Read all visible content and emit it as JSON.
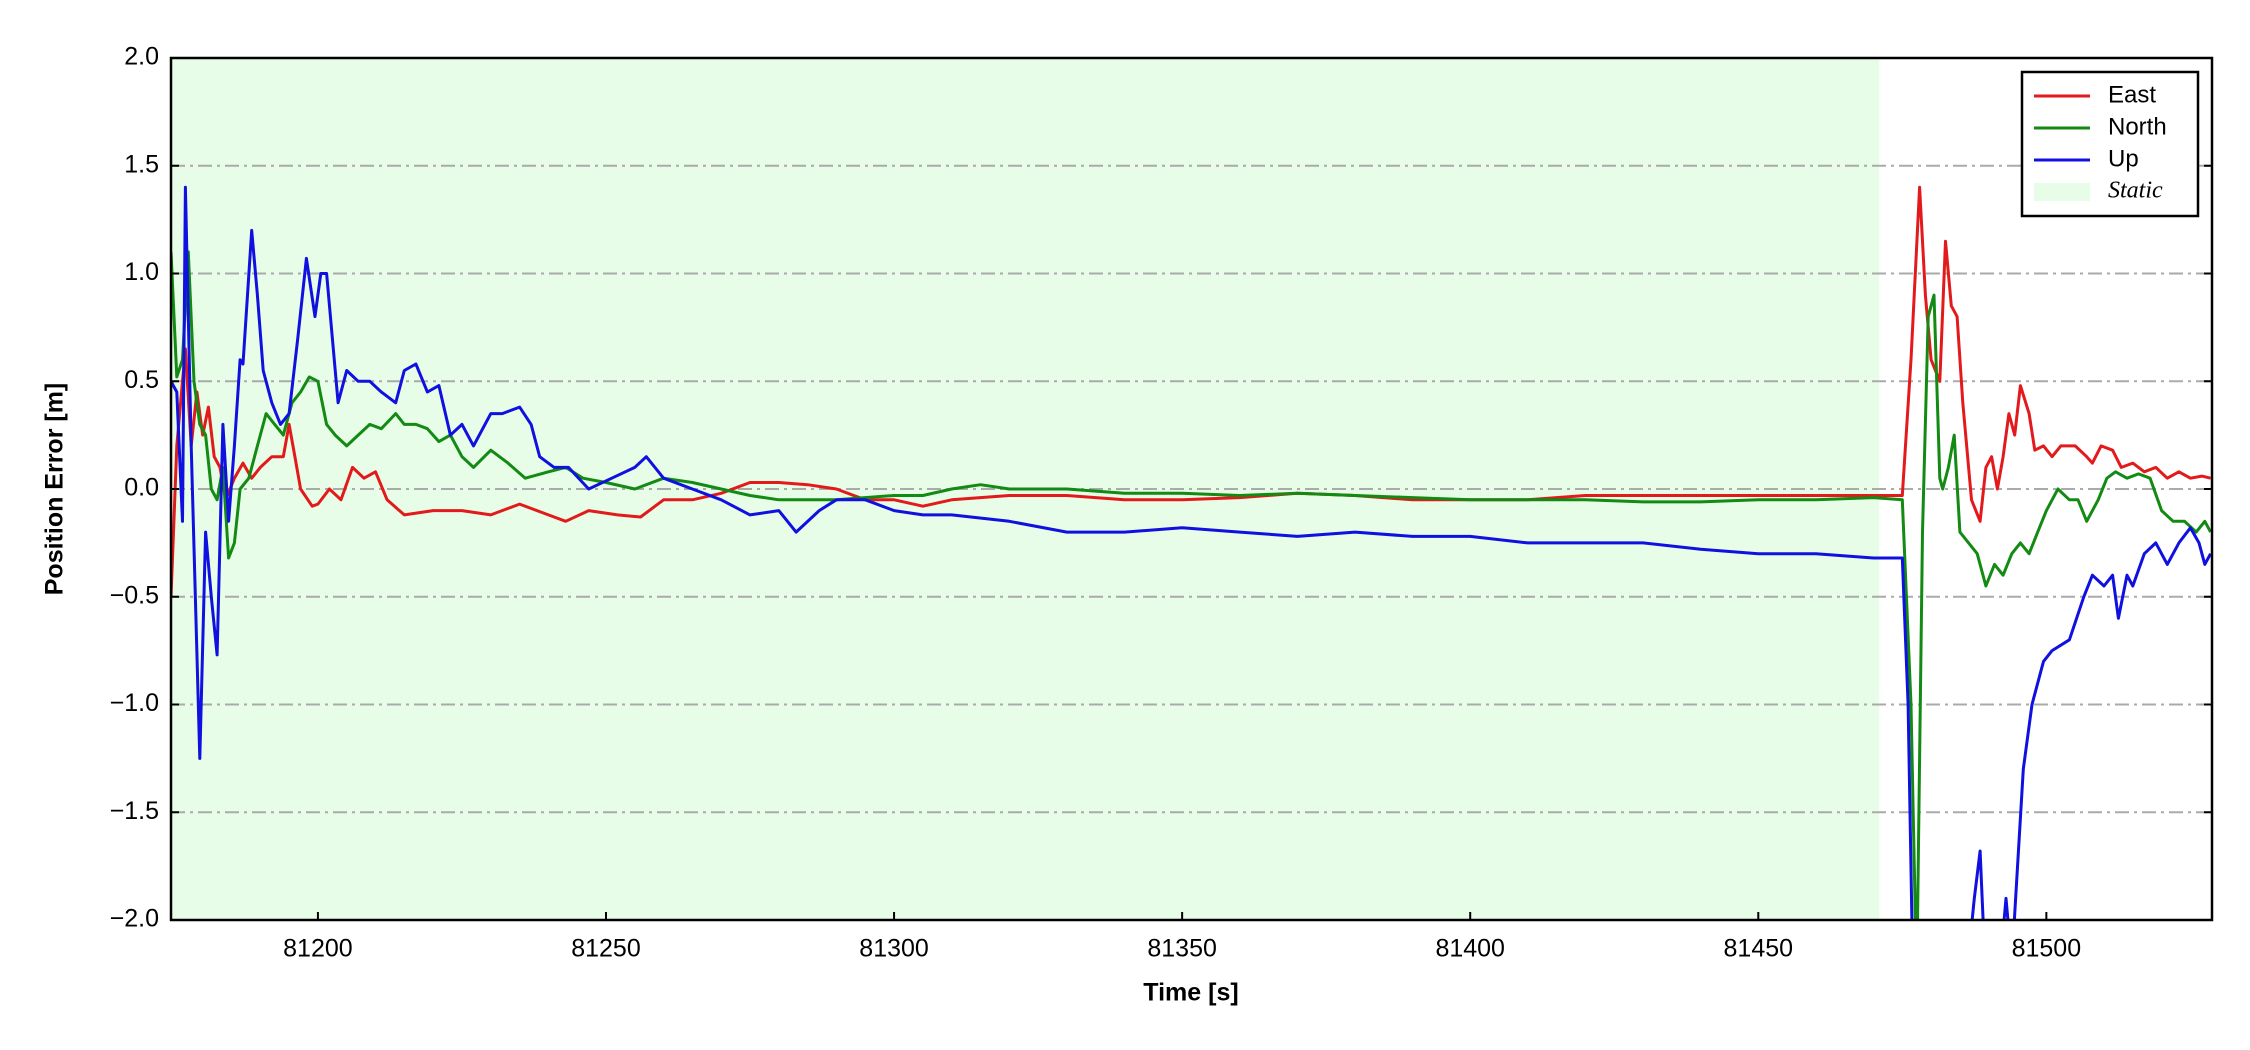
{
  "chart_data": {
    "type": "line",
    "xlabel": "Time [s]",
    "ylabel": "Position Error [m]",
    "xlim": [
      81174.5,
      81528.75
    ],
    "ylim": [
      -2.0,
      2.0
    ],
    "xticks": [
      81200,
      81250,
      81300,
      81350,
      81400,
      81450,
      81500
    ],
    "yticks": [
      {
        "value": -2.0,
        "label": "−2.0"
      },
      {
        "value": -1.5,
        "label": "−1.5"
      },
      {
        "value": -1.0,
        "label": "−1.0"
      },
      {
        "value": -0.5,
        "label": "−0.5"
      },
      {
        "value": 0.0,
        "label": "0.0"
      },
      {
        "value": 0.5,
        "label": "0.5"
      },
      {
        "value": 1.0,
        "label": "1.0"
      },
      {
        "value": 1.5,
        "label": "1.5"
      },
      {
        "value": 2.0,
        "label": "2.0"
      }
    ],
    "grid": true,
    "legend": "upper right",
    "spans": [
      {
        "name": "Static",
        "xlim": [
          81174.5,
          81471
        ],
        "color": "#e8fde8"
      }
    ],
    "series": [
      {
        "name": "East",
        "color": "#e31a1c",
        "x": [
          81174.5,
          81175.5,
          81176.5,
          81177,
          81178,
          81179,
          81180,
          81181,
          81182,
          81183,
          81184,
          81185.5,
          81187,
          81188.5,
          81190,
          81192,
          81194,
          81195,
          81196,
          81197,
          81199,
          81200,
          81202,
          81204,
          81206,
          81208,
          81210,
          81212,
          81215,
          81220,
          81225,
          81230,
          81235,
          81240,
          81243,
          81247,
          81252,
          81256,
          81260,
          81265,
          81270,
          81275,
          81280,
          81285,
          81290,
          81295,
          81300,
          81305,
          81310,
          81320,
          81330,
          81340,
          81350,
          81360,
          81370,
          81380,
          81390,
          81400,
          81410,
          81420,
          81430,
          81440,
          81450,
          81460,
          81470,
          81475,
          81476.5,
          81478,
          81479,
          81480,
          81481.5,
          81482.5,
          81483.5,
          81484.5,
          81485.5,
          81487,
          81488.5,
          81489.5,
          81490.5,
          81491.5,
          81492.5,
          81493.5,
          81494.5,
          81495.5,
          81497,
          81498,
          81499.5,
          81501,
          81502.5,
          81505,
          81507,
          81508,
          81509.5,
          81511.5,
          81513,
          81515,
          81517,
          81519,
          81521,
          81523,
          81525,
          81527,
          81528.5
        ],
        "values": [
          -0.5,
          0.2,
          0.5,
          0.65,
          0.2,
          0.45,
          0.25,
          0.38,
          0.15,
          0.1,
          -0.05,
          0.05,
          0.12,
          0.05,
          0.1,
          0.15,
          0.15,
          0.3,
          0.15,
          0.0,
          -0.08,
          -0.07,
          0.0,
          -0.05,
          0.1,
          0.05,
          0.08,
          -0.05,
          -0.12,
          -0.1,
          -0.1,
          -0.12,
          -0.07,
          -0.12,
          -0.15,
          -0.1,
          -0.12,
          -0.13,
          -0.05,
          -0.05,
          -0.02,
          0.03,
          0.03,
          0.02,
          0.0,
          -0.05,
          -0.05,
          -0.08,
          -0.05,
          -0.03,
          -0.03,
          -0.05,
          -0.05,
          -0.04,
          -0.02,
          -0.03,
          -0.05,
          -0.05,
          -0.05,
          -0.03,
          -0.03,
          -0.03,
          -0.03,
          -0.03,
          -0.03,
          -0.03,
          0.6,
          1.4,
          0.9,
          0.6,
          0.5,
          1.15,
          0.85,
          0.8,
          0.4,
          -0.05,
          -0.15,
          0.1,
          0.15,
          0.0,
          0.15,
          0.35,
          0.25,
          0.48,
          0.35,
          0.18,
          0.2,
          0.15,
          0.2,
          0.2,
          0.15,
          0.12,
          0.2,
          0.18,
          0.1,
          0.12,
          0.08,
          0.1,
          0.05,
          0.08,
          0.05,
          0.06,
          0.05
        ]
      },
      {
        "name": "North",
        "color": "#138a13",
        "x": [
          81174.5,
          81175.5,
          81176.5,
          81177.5,
          81178.5,
          81179.5,
          81180.5,
          81181.5,
          81182.5,
          81183.5,
          81184.5,
          81185.5,
          81186.5,
          81188,
          81189.5,
          81191,
          81192.5,
          81194,
          81195.5,
          81197,
          81198.5,
          81200,
          81201.5,
          81203,
          81205,
          81207,
          81209,
          81211,
          81213.5,
          81215,
          81217,
          81219,
          81221,
          81223,
          81225,
          81227,
          81230,
          81233,
          81236,
          81240,
          81243,
          81246,
          81250,
          81255,
          81260,
          81265,
          81270,
          81275,
          81280,
          81290,
          81300,
          81305,
          81310,
          81315,
          81320,
          81330,
          81340,
          81350,
          81360,
          81370,
          81380,
          81390,
          81400,
          81410,
          81420,
          81430,
          81440,
          81450,
          81460,
          81470,
          81475,
          81476.5,
          81477.5,
          81478.5,
          81479.5,
          81480.5,
          81481.5,
          81482,
          81483,
          81484,
          81485,
          81486.5,
          81488,
          81489.5,
          81491,
          81492.5,
          81494,
          81495.5,
          81497,
          81498.5,
          81500,
          81502,
          81504,
          81505.5,
          81507,
          81509,
          81510.5,
          81512,
          81514,
          81516,
          81518,
          81520,
          81522,
          81524,
          81526,
          81527.5,
          81528.5
        ],
        "values": [
          1.1,
          0.52,
          0.6,
          1.1,
          0.5,
          0.3,
          0.25,
          0.0,
          -0.05,
          0.1,
          -0.32,
          -0.25,
          0.0,
          0.05,
          0.2,
          0.35,
          0.3,
          0.25,
          0.4,
          0.45,
          0.52,
          0.5,
          0.3,
          0.25,
          0.2,
          0.25,
          0.3,
          0.28,
          0.35,
          0.3,
          0.3,
          0.28,
          0.22,
          0.25,
          0.15,
          0.1,
          0.18,
          0.12,
          0.05,
          0.08,
          0.1,
          0.05,
          0.03,
          0.0,
          0.05,
          0.03,
          0.0,
          -0.03,
          -0.05,
          -0.05,
          -0.03,
          -0.03,
          0.0,
          0.02,
          0.0,
          0.0,
          -0.02,
          -0.02,
          -0.03,
          -0.02,
          -0.03,
          -0.04,
          -0.05,
          -0.05,
          -0.05,
          -0.06,
          -0.06,
          -0.05,
          -0.05,
          -0.04,
          -0.05,
          -1.0,
          -2.3,
          -0.2,
          0.8,
          0.9,
          0.05,
          0.0,
          0.1,
          0.25,
          -0.2,
          -0.25,
          -0.3,
          -0.45,
          -0.35,
          -0.4,
          -0.3,
          -0.25,
          -0.3,
          -0.2,
          -0.1,
          0.0,
          -0.05,
          -0.05,
          -0.15,
          -0.05,
          0.05,
          0.08,
          0.05,
          0.07,
          0.05,
          -0.1,
          -0.15,
          -0.15,
          -0.2,
          -0.15,
          -0.2
        ]
      },
      {
        "name": "Up",
        "color": "#1010e0",
        "x": [
          81174.5,
          81175.5,
          81176.5,
          81177,
          81178,
          81179.5,
          81180.5,
          81181.5,
          81182.5,
          81183.5,
          81184.5,
          81185.5,
          81186.5,
          81187,
          81188.5,
          81189.5,
          81190.5,
          81192,
          81193.5,
          81195,
          81196.5,
          81198,
          81199.5,
          81200.5,
          81201.5,
          81203.5,
          81205,
          81207,
          81209,
          81211,
          81213.5,
          81215,
          81217,
          81219,
          81221,
          81223,
          81225,
          81227,
          81230,
          81232,
          81235,
          81237,
          81238.5,
          81241,
          81243.5,
          81247,
          81251,
          81255,
          81257,
          81260,
          81265,
          81270,
          81275,
          81280,
          81283,
          81287,
          81290,
          81295,
          81300,
          81305,
          81310,
          81320,
          81330,
          81340,
          81350,
          81360,
          81370,
          81380,
          81390,
          81400,
          81410,
          81420,
          81430,
          81440,
          81450,
          81460,
          81470,
          81475,
          81476,
          81477,
          81486,
          81487.5,
          81488.5,
          81489.5,
          81492,
          81493,
          81494,
          81496,
          81497.5,
          81499.5,
          81501,
          81504,
          81506.5,
          81508,
          81510,
          81511.5,
          81512.5,
          81514,
          81515,
          81517,
          81519,
          81521,
          81523,
          81525,
          81526.5,
          81527.5,
          81528.5
        ],
        "values": [
          0.5,
          0.45,
          -0.15,
          1.4,
          0.2,
          -1.25,
          -0.2,
          -0.5,
          -0.77,
          0.3,
          -0.15,
          0.2,
          0.6,
          0.58,
          1.2,
          0.9,
          0.55,
          0.4,
          0.3,
          0.35,
          0.7,
          1.07,
          0.8,
          1.0,
          1.0,
          0.4,
          0.55,
          0.5,
          0.5,
          0.45,
          0.4,
          0.55,
          0.58,
          0.45,
          0.48,
          0.25,
          0.3,
          0.2,
          0.35,
          0.35,
          0.38,
          0.3,
          0.15,
          0.1,
          0.1,
          0.0,
          0.05,
          0.1,
          0.15,
          0.05,
          0.0,
          -0.05,
          -0.12,
          -0.1,
          -0.2,
          -0.1,
          -0.05,
          -0.05,
          -0.1,
          -0.12,
          -0.12,
          -0.15,
          -0.2,
          -0.2,
          -0.18,
          -0.2,
          -0.22,
          -0.2,
          -0.22,
          -0.22,
          -0.25,
          -0.25,
          -0.25,
          -0.28,
          -0.3,
          -0.3,
          -0.32,
          -0.32,
          -1.0,
          -2.5,
          -2.3,
          -1.9,
          -1.68,
          -2.3,
          -2.2,
          -1.9,
          -2.2,
          -1.3,
          -1.0,
          -0.8,
          -0.75,
          -0.7,
          -0.5,
          -0.4,
          -0.45,
          -0.4,
          -0.6,
          -0.4,
          -0.45,
          -0.3,
          -0.25,
          -0.35,
          -0.25,
          -0.18,
          -0.25,
          -0.35,
          -0.3
        ]
      }
    ]
  }
}
